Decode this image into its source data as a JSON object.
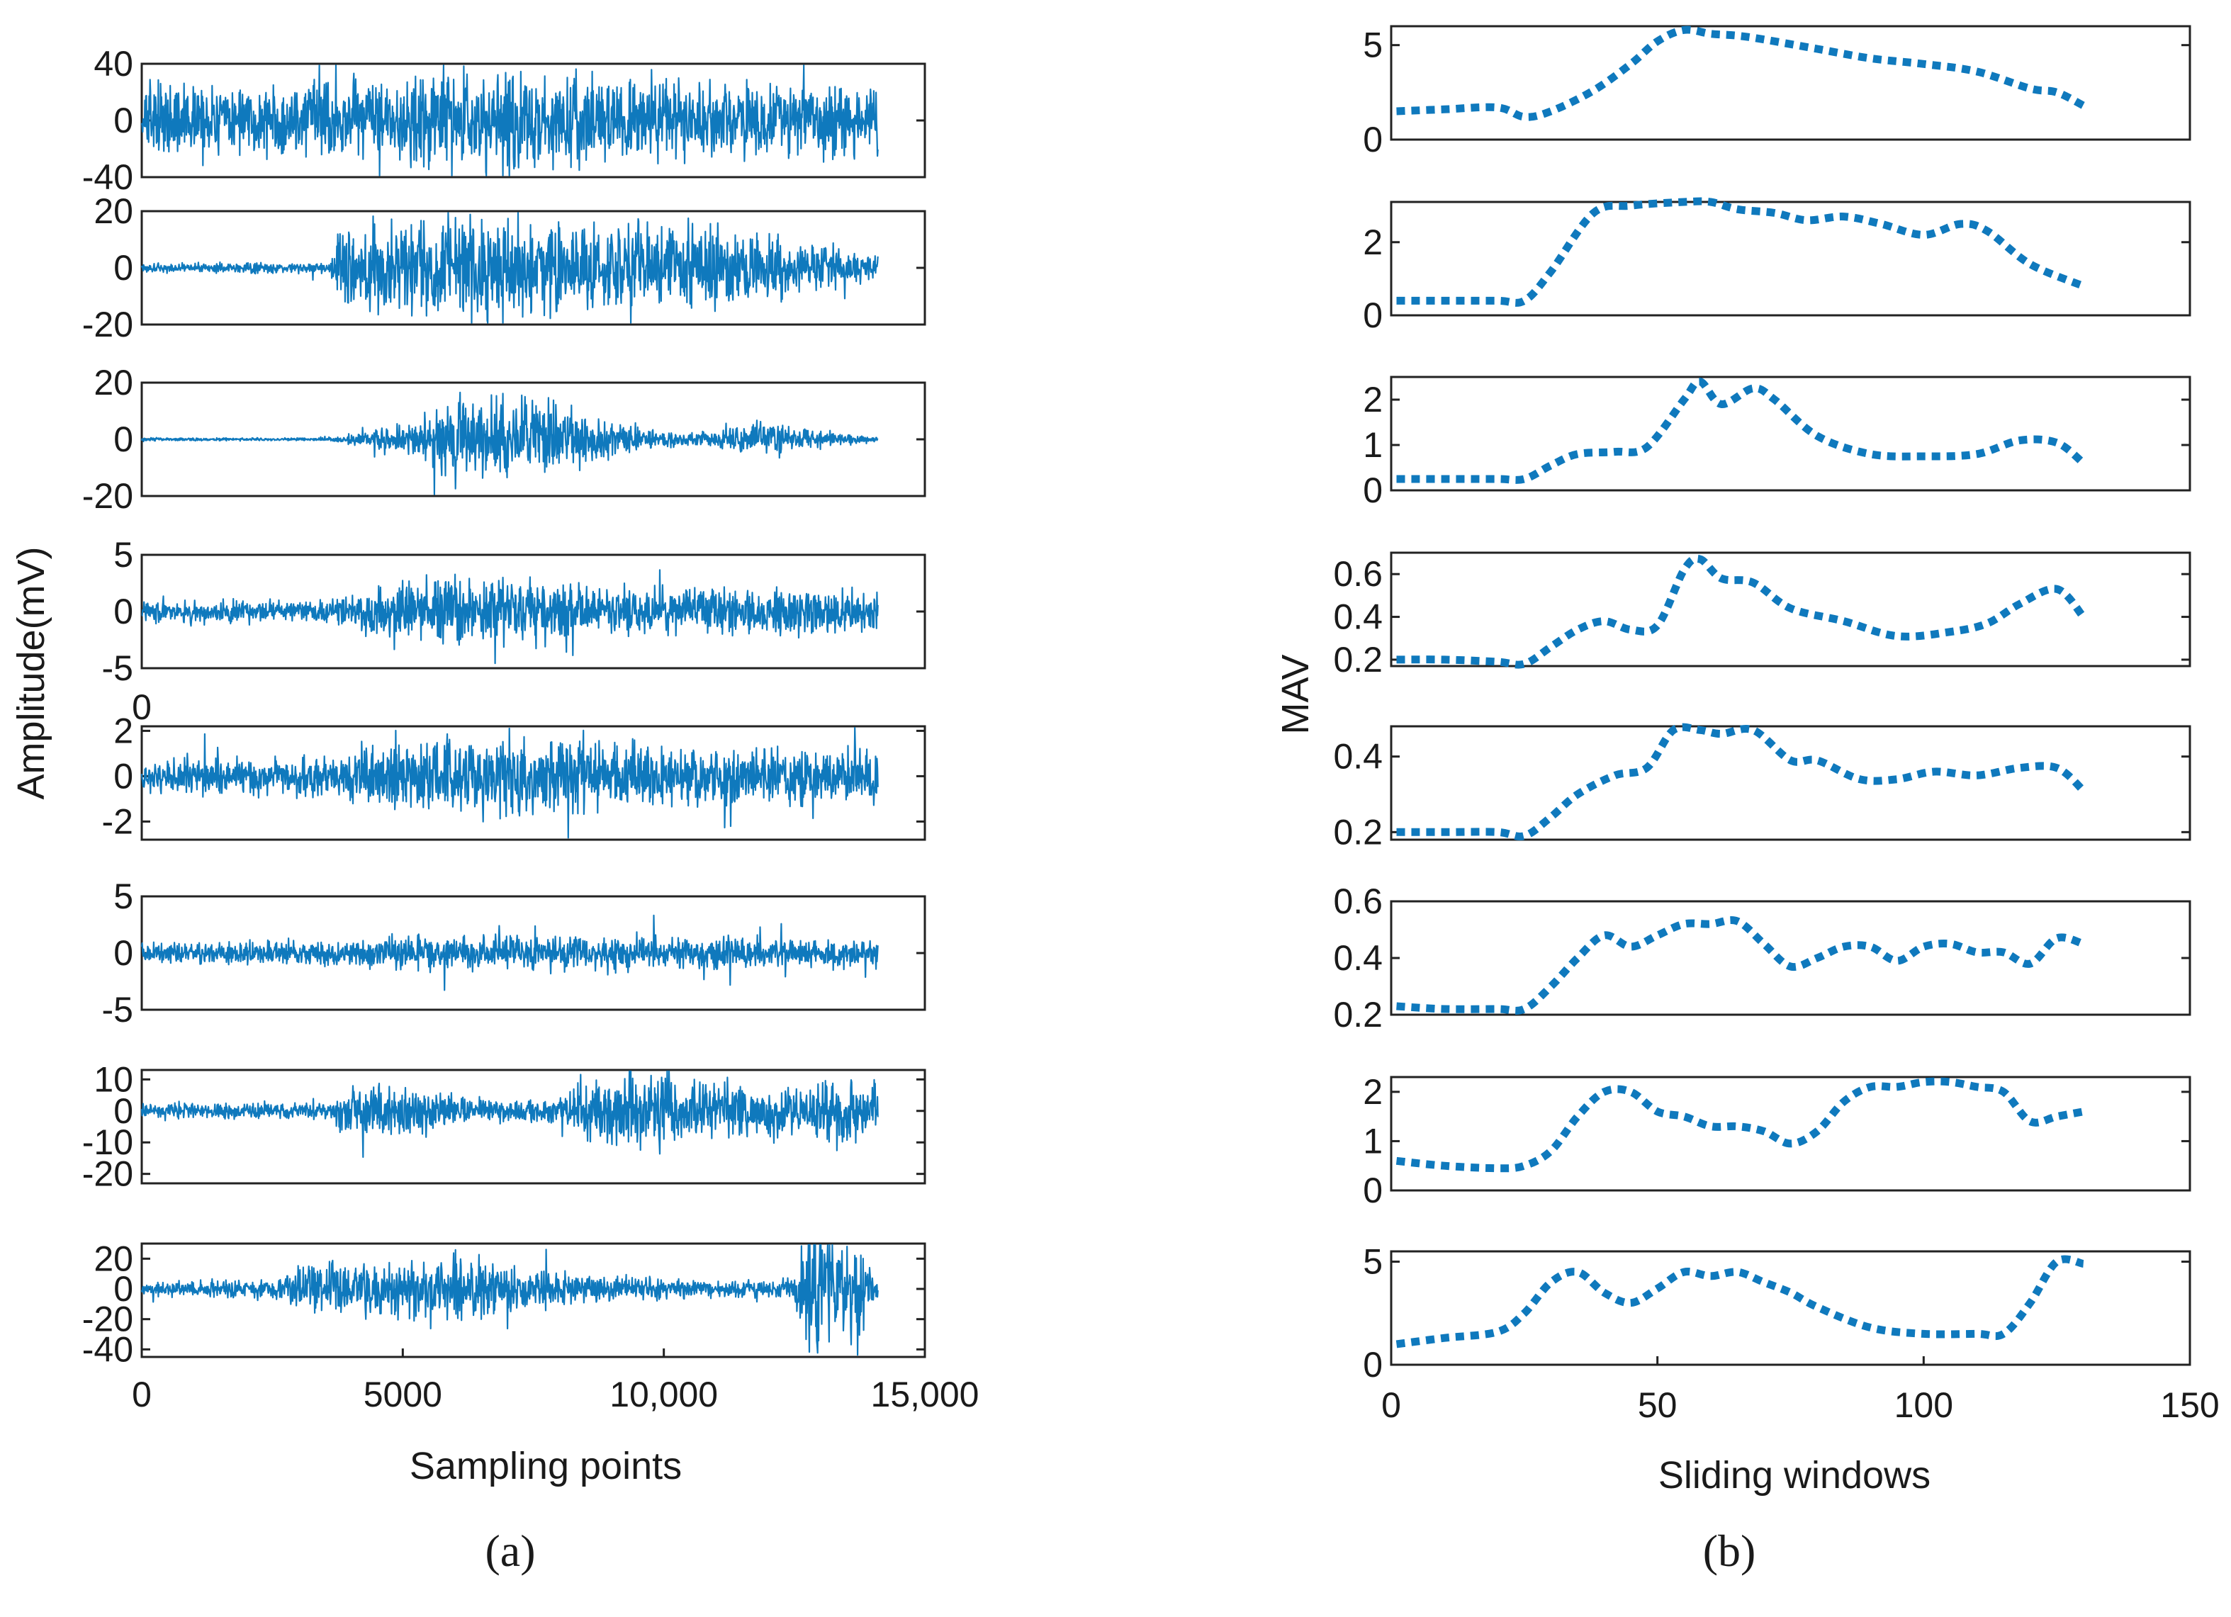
{
  "colors": {
    "signal": "#0f79bd",
    "axis": "#222222",
    "text": "#1a1a1a"
  },
  "chart_data": [
    {
      "type": "line",
      "panel": "a",
      "caption": "(a)",
      "xlabel": "Sampling points",
      "ylabel": "Amplitude(mV)",
      "xlim": [
        0,
        15000
      ],
      "xticks": [
        "0",
        "5000",
        "10,000",
        "15,000"
      ],
      "xtick_values": [
        0,
        5000,
        10000,
        15000
      ],
      "signal_length": 14100,
      "stray_label": "0",
      "channels": [
        {
          "name": "ch1",
          "ylim": [
            -40,
            40
          ],
          "yticks": [
            {
              "v": 40,
              "t": "40"
            },
            {
              "v": 0,
              "t": "0"
            },
            {
              "v": -40,
              "t": "-40"
            }
          ],
          "base_amp": 12,
          "activity": [
            [
              0,
              1.0
            ],
            [
              3000,
              1.0
            ],
            [
              5000,
              1.3
            ],
            [
              7000,
              1.5
            ],
            [
              9000,
              1.2
            ],
            [
              11000,
              1.0
            ],
            [
              14100,
              1.0
            ]
          ]
        },
        {
          "name": "ch2",
          "ylim": [
            -20,
            20
          ],
          "yticks": [
            {
              "v": 20,
              "t": "20"
            },
            {
              "v": 0,
              "t": "0"
            },
            {
              "v": -20,
              "t": "-20"
            }
          ],
          "base_amp": 7,
          "activity": [
            [
              0,
              0.12
            ],
            [
              3600,
              0.12
            ],
            [
              3800,
              1.0
            ],
            [
              6000,
              1.2
            ],
            [
              8000,
              1.1
            ],
            [
              11000,
              1.0
            ],
            [
              13000,
              0.6
            ],
            [
              14100,
              0.25
            ]
          ]
        },
        {
          "name": "ch3",
          "ylim": [
            -20,
            20
          ],
          "yticks": [
            {
              "v": 20,
              "t": "20"
            },
            {
              "v": 0,
              "t": "0"
            },
            {
              "v": -20,
              "t": "-20"
            }
          ],
          "base_amp": 5,
          "activity": [
            [
              0,
              0.05
            ],
            [
              3500,
              0.05
            ],
            [
              4500,
              0.3
            ],
            [
              5500,
              0.8
            ],
            [
              6000,
              1.8
            ],
            [
              7000,
              1.2
            ],
            [
              7500,
              1.5
            ],
            [
              9000,
              0.6
            ],
            [
              10500,
              0.2
            ],
            [
              12000,
              0.6
            ],
            [
              13000,
              0.3
            ],
            [
              14100,
              0.1
            ]
          ]
        },
        {
          "name": "ch4",
          "ylim": [
            -5,
            5
          ],
          "yticks": [
            {
              "v": 5,
              "t": "5"
            },
            {
              "v": 0,
              "t": "0"
            },
            {
              "v": -5,
              "t": "-5"
            }
          ],
          "base_amp": 0.9,
          "activity": [
            [
              0,
              0.5
            ],
            [
              3500,
              0.5
            ],
            [
              4500,
              1.0
            ],
            [
              6000,
              1.8
            ],
            [
              7500,
              1.4
            ],
            [
              9000,
              1.0
            ],
            [
              12000,
              1.1
            ],
            [
              13500,
              1.3
            ],
            [
              14100,
              0.8
            ]
          ]
        },
        {
          "name": "ch5",
          "ylim": [
            -2.8,
            2.2
          ],
          "yticks": [
            {
              "v": 2,
              "t": "2"
            },
            {
              "v": 0,
              "t": "0"
            },
            {
              "v": -2,
              "t": "-2"
            }
          ],
          "base_amp": 0.6,
          "activity": [
            [
              0,
              0.6
            ],
            [
              3500,
              0.7
            ],
            [
              5000,
              1.3
            ],
            [
              7000,
              1.5
            ],
            [
              9000,
              1.2
            ],
            [
              12000,
              1.0
            ],
            [
              14100,
              0.9
            ]
          ]
        },
        {
          "name": "ch6",
          "ylim": [
            -5,
            5
          ],
          "yticks": [
            {
              "v": 5,
              "t": "5"
            },
            {
              "v": 0,
              "t": "0"
            },
            {
              "v": -5,
              "t": "-5"
            }
          ],
          "base_amp": 0.7,
          "activity": [
            [
              0,
              0.6
            ],
            [
              3500,
              0.7
            ],
            [
              5000,
              1.0
            ],
            [
              7000,
              1.1
            ],
            [
              9000,
              1.0
            ],
            [
              12000,
              0.9
            ],
            [
              14100,
              0.8
            ]
          ]
        },
        {
          "name": "ch7",
          "ylim": [
            -23,
            13
          ],
          "yticks": [
            {
              "v": 10,
              "t": "10"
            },
            {
              "v": 0,
              "t": "0"
            },
            {
              "v": -10,
              "t": "-10"
            },
            {
              "v": -20,
              "t": "-20"
            }
          ],
          "base_amp": 4,
          "activity": [
            [
              0,
              0.3
            ],
            [
              3500,
              0.3
            ],
            [
              4000,
              1.0
            ],
            [
              5500,
              0.8
            ],
            [
              6500,
              0.4
            ],
            [
              8000,
              0.5
            ],
            [
              9000,
              1.6
            ],
            [
              10500,
              1.3
            ],
            [
              12000,
              1.0
            ],
            [
              13500,
              1.2
            ],
            [
              14100,
              1.0
            ]
          ]
        },
        {
          "name": "ch8",
          "ylim": [
            -45,
            30
          ],
          "yticks": [
            {
              "v": 20,
              "t": "20"
            },
            {
              "v": 0,
              "t": "0"
            },
            {
              "v": -20,
              "t": "-20"
            },
            {
              "v": -40,
              "t": "-40"
            }
          ],
          "base_amp": 8,
          "activity": [
            [
              0,
              0.3
            ],
            [
              2500,
              0.4
            ],
            [
              3500,
              1.2
            ],
            [
              5000,
              1.0
            ],
            [
              6000,
              1.3
            ],
            [
              7500,
              0.8
            ],
            [
              9000,
              0.5
            ],
            [
              11000,
              0.3
            ],
            [
              12500,
              0.4
            ],
            [
              12700,
              2.2
            ],
            [
              13600,
              2.4
            ],
            [
              14100,
              0.4
            ]
          ]
        }
      ]
    },
    {
      "type": "line",
      "panel": "b",
      "caption": "(b)",
      "xlabel": "Sliding windows",
      "ylabel": "MAV",
      "xlim": [
        0,
        150
      ],
      "xticks": [
        "0",
        "50",
        "100",
        "150"
      ],
      "xtick_values": [
        0,
        50,
        100,
        150
      ],
      "line_style": "dotted",
      "channels": [
        {
          "name": "ch1",
          "ylim": [
            0,
            6
          ],
          "yticks": [
            {
              "v": 5,
              "t": "5"
            },
            {
              "v": 0,
              "t": "0"
            }
          ],
          "x": [
            1,
            10,
            20,
            25,
            30,
            38,
            45,
            50,
            55,
            60,
            65,
            70,
            80,
            90,
            100,
            110,
            120,
            125,
            130
          ],
          "y": [
            1.5,
            1.6,
            1.7,
            1.2,
            1.5,
            2.6,
            4.0,
            5.2,
            5.8,
            5.6,
            5.5,
            5.3,
            4.8,
            4.3,
            4.0,
            3.6,
            2.7,
            2.5,
            1.8
          ]
        },
        {
          "name": "ch2",
          "ylim": [
            0,
            3.1
          ],
          "yticks": [
            {
              "v": 2,
              "t": "2"
            },
            {
              "v": 0,
              "t": "0"
            }
          ],
          "x": [
            1,
            10,
            20,
            25,
            30,
            38,
            45,
            55,
            60,
            65,
            72,
            78,
            85,
            92,
            100,
            107,
            112,
            120,
            130
          ],
          "y": [
            0.4,
            0.4,
            0.4,
            0.4,
            1.2,
            2.8,
            3.0,
            3.1,
            3.1,
            2.9,
            2.8,
            2.6,
            2.7,
            2.5,
            2.2,
            2.5,
            2.3,
            1.4,
            0.8
          ]
        },
        {
          "name": "ch3",
          "ylim": [
            0,
            2.5
          ],
          "yticks": [
            {
              "v": 2,
              "t": "2"
            },
            {
              "v": 1,
              "t": "1"
            },
            {
              "v": 0,
              "t": "0"
            }
          ],
          "x": [
            1,
            10,
            20,
            25,
            30,
            35,
            42,
            48,
            55,
            58,
            62,
            68,
            72,
            80,
            90,
            100,
            110,
            118,
            125,
            130
          ],
          "y": [
            0.25,
            0.25,
            0.25,
            0.25,
            0.55,
            0.8,
            0.85,
            0.95,
            2.0,
            2.4,
            1.9,
            2.25,
            2.0,
            1.2,
            0.8,
            0.75,
            0.8,
            1.1,
            1.05,
            0.6
          ]
        },
        {
          "name": "ch4",
          "ylim": [
            0.17,
            0.7
          ],
          "yticks": [
            {
              "v": 0.6,
              "t": "0.6"
            },
            {
              "v": 0.4,
              "t": "0.4"
            },
            {
              "v": 0.2,
              "t": "0.2"
            }
          ],
          "x": [
            1,
            10,
            20,
            25,
            30,
            35,
            40,
            45,
            50,
            55,
            58,
            62,
            68,
            75,
            85,
            95,
            105,
            112,
            118,
            125,
            130
          ],
          "y": [
            0.2,
            0.2,
            0.19,
            0.18,
            0.26,
            0.34,
            0.38,
            0.34,
            0.36,
            0.62,
            0.67,
            0.58,
            0.56,
            0.44,
            0.38,
            0.31,
            0.33,
            0.37,
            0.46,
            0.53,
            0.4
          ]
        },
        {
          "name": "ch5",
          "ylim": [
            0.18,
            0.48
          ],
          "yticks": [
            {
              "v": 0.4,
              "t": "0.4"
            },
            {
              "v": 0.2,
              "t": "0.2"
            }
          ],
          "x": [
            1,
            10,
            20,
            25,
            30,
            35,
            42,
            48,
            53,
            58,
            62,
            68,
            75,
            80,
            88,
            95,
            102,
            110,
            118,
            125,
            130
          ],
          "y": [
            0.2,
            0.2,
            0.2,
            0.19,
            0.24,
            0.3,
            0.35,
            0.37,
            0.47,
            0.47,
            0.46,
            0.47,
            0.39,
            0.39,
            0.34,
            0.34,
            0.36,
            0.35,
            0.37,
            0.37,
            0.31
          ]
        },
        {
          "name": "ch6",
          "ylim": [
            0.2,
            0.6
          ],
          "yticks": [
            {
              "v": 0.6,
              "t": "0.6"
            },
            {
              "v": 0.4,
              "t": "0.4"
            },
            {
              "v": 0.2,
              "t": "0.2"
            }
          ],
          "x": [
            1,
            10,
            20,
            25,
            30,
            35,
            40,
            45,
            50,
            55,
            60,
            65,
            70,
            75,
            80,
            85,
            90,
            95,
            100,
            105,
            110,
            115,
            120,
            125,
            130
          ],
          "y": [
            0.23,
            0.22,
            0.22,
            0.22,
            0.3,
            0.4,
            0.48,
            0.44,
            0.48,
            0.52,
            0.52,
            0.53,
            0.45,
            0.37,
            0.4,
            0.44,
            0.44,
            0.39,
            0.44,
            0.45,
            0.42,
            0.42,
            0.38,
            0.47,
            0.45
          ]
        },
        {
          "name": "ch7",
          "ylim": [
            0,
            2.3
          ],
          "yticks": [
            {
              "v": 2,
              "t": "2"
            },
            {
              "v": 1,
              "t": "1"
            },
            {
              "v": 0,
              "t": "0"
            }
          ],
          "x": [
            1,
            10,
            20,
            25,
            30,
            35,
            40,
            45,
            50,
            55,
            60,
            65,
            70,
            75,
            80,
            85,
            90,
            95,
            100,
            105,
            110,
            115,
            120,
            125,
            130
          ],
          "y": [
            0.6,
            0.5,
            0.45,
            0.5,
            0.8,
            1.5,
            2.0,
            2.0,
            1.6,
            1.5,
            1.3,
            1.3,
            1.2,
            0.95,
            1.2,
            1.8,
            2.1,
            2.1,
            2.2,
            2.2,
            2.1,
            2.0,
            1.4,
            1.5,
            1.6
          ]
        },
        {
          "name": "ch8",
          "ylim": [
            0,
            5.5
          ],
          "yticks": [
            {
              "v": 5,
              "t": "5"
            },
            {
              "v": 0,
              "t": "0"
            }
          ],
          "x": [
            1,
            10,
            20,
            25,
            30,
            35,
            40,
            45,
            50,
            55,
            60,
            65,
            70,
            75,
            80,
            90,
            100,
            110,
            115,
            120,
            125,
            130
          ],
          "y": [
            1.0,
            1.3,
            1.6,
            2.5,
            4.0,
            4.5,
            3.5,
            3.0,
            3.7,
            4.5,
            4.3,
            4.5,
            4.0,
            3.5,
            2.8,
            1.8,
            1.5,
            1.5,
            1.5,
            3.0,
            5.0,
            4.9
          ]
        }
      ]
    }
  ]
}
